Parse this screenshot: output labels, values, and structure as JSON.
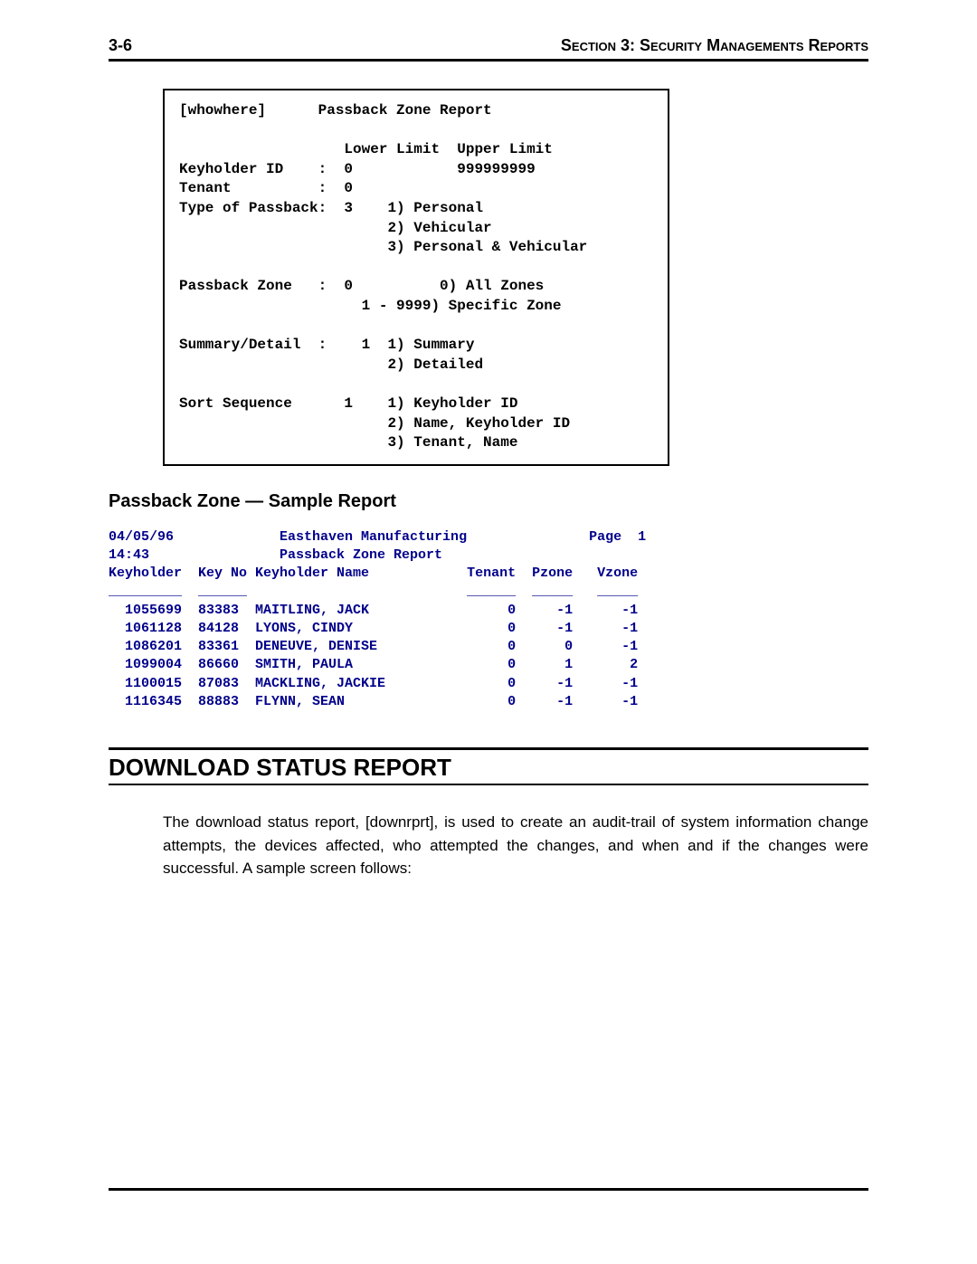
{
  "header": {
    "page_num": "3-6",
    "section_label": "Section 3: Security Managements Reports"
  },
  "terminal": {
    "lines": [
      "[whowhere]      Passback Zone Report",
      "",
      "                   Lower Limit  Upper Limit",
      "Keyholder ID    :  0            999999999",
      "Tenant          :  0",
      "Type of Passback:  3    1) Personal",
      "                        2) Vehicular",
      "                        3) Personal & Vehicular",
      "",
      "Passback Zone   :  0          0) All Zones",
      "                     1 - 9999) Specific Zone",
      "",
      "Summary/Detail  :    1  1) Summary",
      "                        2) Detailed",
      "",
      "Sort Sequence      1    1) Keyholder ID",
      "                        2) Name, Keyholder ID",
      "                        3) Tenant, Name"
    ]
  },
  "sample_title": "Passback Zone — Sample Report",
  "report": {
    "date": "04/05/96",
    "time": "14:43",
    "company": "Easthaven Manufacturing",
    "subtitle": "Passback Zone Report",
    "page_label": "Page  1",
    "columns": [
      "Keyholder",
      "Key No",
      "Keyholder Name",
      "Tenant",
      "Pzone",
      "Vzone"
    ],
    "rows": [
      {
        "keyholder": "1055699",
        "keyno": "83383",
        "name": "MAITLING, JACK",
        "tenant": "0",
        "pzone": "-1",
        "vzone": "-1"
      },
      {
        "keyholder": "1061128",
        "keyno": "84128",
        "name": "LYONS, CINDY",
        "tenant": "0",
        "pzone": "-1",
        "vzone": "-1"
      },
      {
        "keyholder": "1086201",
        "keyno": "83361",
        "name": "DENEUVE, DENISE",
        "tenant": "0",
        "pzone": "0",
        "vzone": "-1"
      },
      {
        "keyholder": "1099004",
        "keyno": "86660",
        "name": "SMITH, PAULA",
        "tenant": "0",
        "pzone": "1",
        "vzone": "2"
      },
      {
        "keyholder": "1100015",
        "keyno": "87083",
        "name": "MACKLING, JACKIE",
        "tenant": "0",
        "pzone": "-1",
        "vzone": "-1"
      },
      {
        "keyholder": "1116345",
        "keyno": "88883",
        "name": "FLYNN, SEAN",
        "tenant": "0",
        "pzone": "-1",
        "vzone": "-1"
      }
    ]
  },
  "download_heading": "DOWNLOAD STATUS REPORT",
  "download_paragraph": "The download status report, [downrprt], is used to create an audit-trail of system information change attempts, the devices affected, who attempted the changes, and when and if the changes were successful.  A sample screen follows:"
}
